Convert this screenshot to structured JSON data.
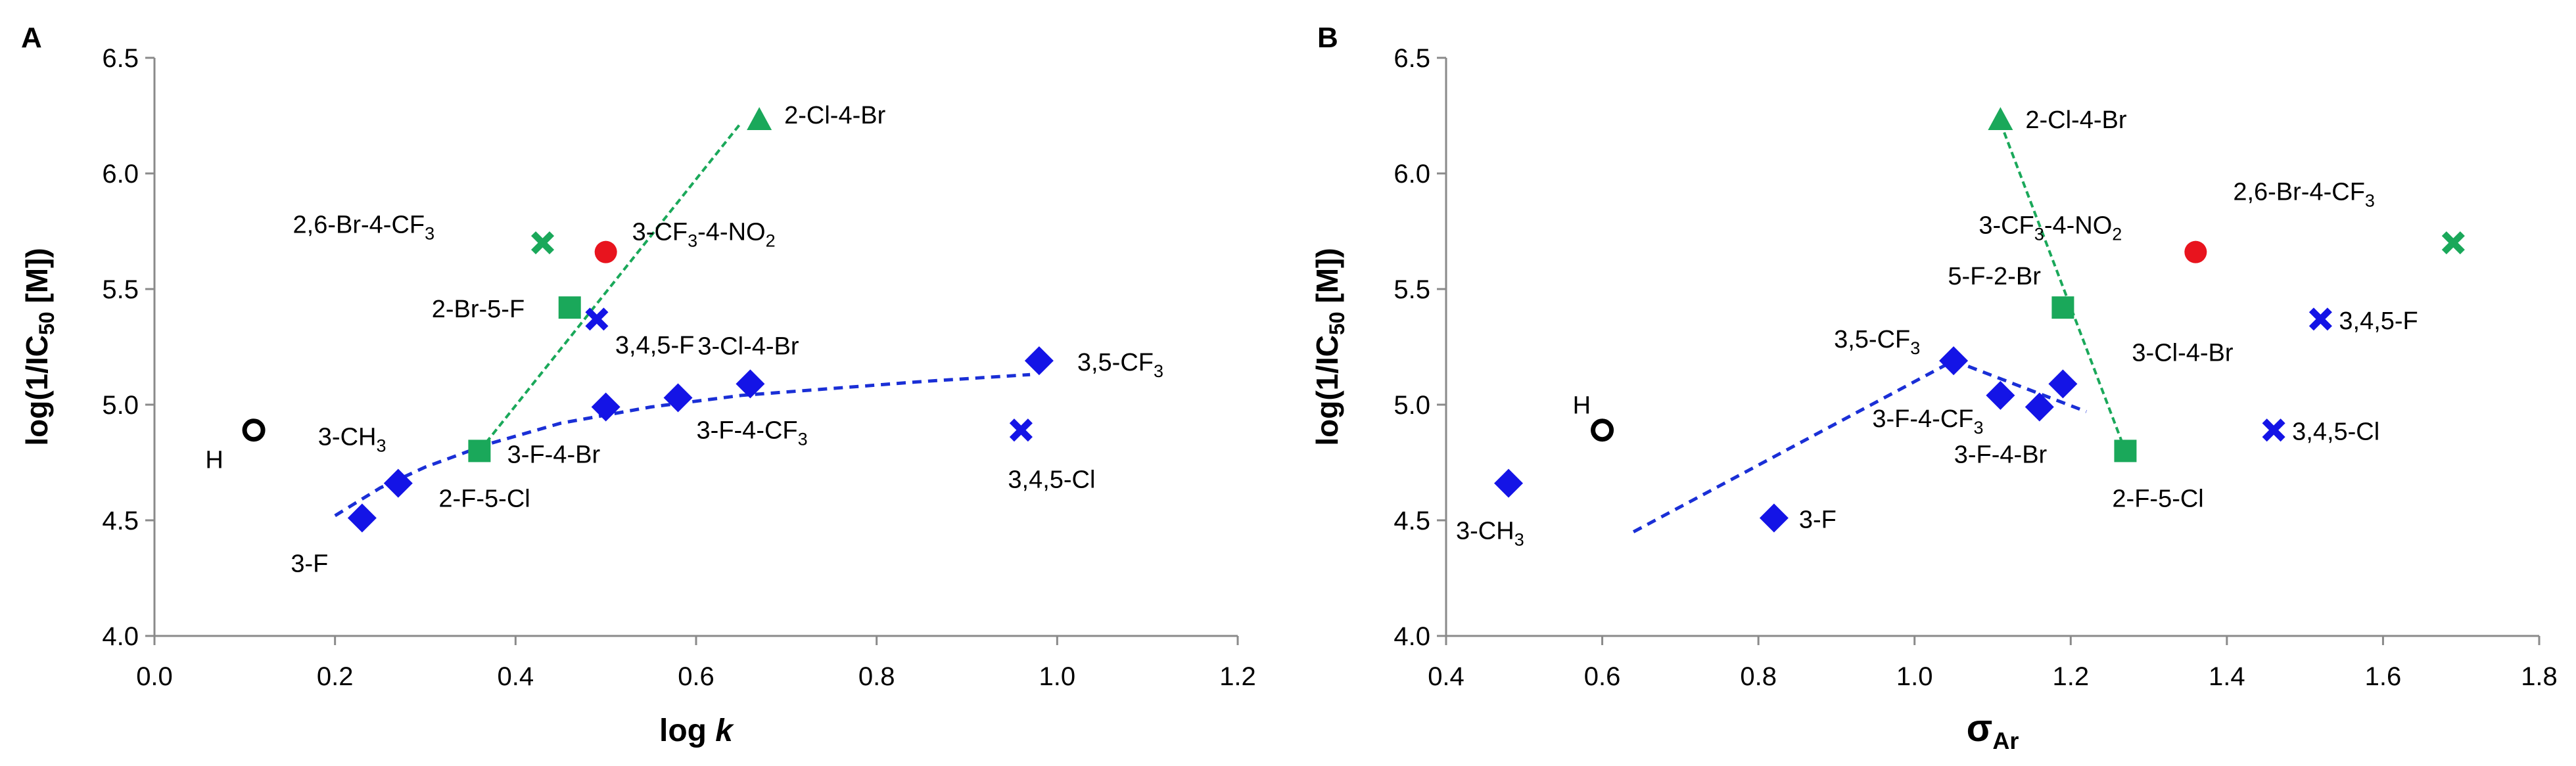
{
  "chart_data": [
    {
      "panel_label": "A",
      "type": "scatter",
      "title": "",
      "xlabel": "log k",
      "ylabel": "log(1/IC50 [M])",
      "xlim": [
        0.0,
        1.2
      ],
      "ylim": [
        4.0,
        6.5
      ],
      "x_ticks": [
        "0.0",
        "0.2",
        "0.4",
        "0.6",
        "0.8",
        "1.0",
        "1.2"
      ],
      "y_ticks": [
        "4.0",
        "4.5",
        "5.0",
        "5.5",
        "6.0",
        "6.5"
      ],
      "grid": false,
      "legend": "none",
      "points": [
        {
          "label": "H",
          "x": 0.11,
          "y": 4.89,
          "marker": "open-circle",
          "color": "#000000"
        },
        {
          "label": "3-F",
          "x": 0.23,
          "y": 4.51,
          "marker": "diamond",
          "color": "#1414e6"
        },
        {
          "label": "3-CH3",
          "x": 0.27,
          "y": 4.66,
          "marker": "diamond",
          "color": "#1414e6"
        },
        {
          "label": "3-F-4-Br",
          "x": 0.5,
          "y": 4.99,
          "marker": "diamond",
          "color": "#1414e6"
        },
        {
          "label": "3-F-4-CF3",
          "x": 0.58,
          "y": 5.03,
          "marker": "diamond",
          "color": "#1414e6"
        },
        {
          "label": "3-Cl-4-Br",
          "x": 0.66,
          "y": 5.09,
          "marker": "diamond",
          "color": "#1414e6"
        },
        {
          "label": "3,5-CF3",
          "x": 0.98,
          "y": 5.19,
          "marker": "diamond",
          "color": "#1414e6"
        },
        {
          "label": "2-F-5-Cl",
          "x": 0.36,
          "y": 4.8,
          "marker": "square",
          "color": "#1aa85a"
        },
        {
          "label": "2-Br-5-F",
          "x": 0.46,
          "y": 5.42,
          "marker": "square",
          "color": "#1aa85a"
        },
        {
          "label": "2-Cl-4-Br",
          "x": 0.67,
          "y": 6.23,
          "marker": "triangle",
          "color": "#1aa85a"
        },
        {
          "label": "2,6-Br-4-CF3",
          "x": 0.43,
          "y": 5.7,
          "marker": "x",
          "color": "#1aa85a"
        },
        {
          "label": "3-CF3-4-NO2",
          "x": 0.5,
          "y": 5.66,
          "marker": "circle",
          "color": "#e8141e"
        },
        {
          "label": "3,4,5-F",
          "x": 0.49,
          "y": 5.37,
          "marker": "x",
          "color": "#1414e6"
        },
        {
          "label": "3,4,5-Cl",
          "x": 0.96,
          "y": 4.89,
          "marker": "x",
          "color": "#1414e6"
        }
      ],
      "trendlines": [
        {
          "name": "blue-fit",
          "color": "#1a2fd6",
          "x": [
            0.2,
            0.25,
            0.3,
            0.37,
            0.45,
            0.55,
            0.65,
            0.75,
            0.85,
            0.97
          ],
          "y": [
            4.52,
            4.64,
            4.73,
            4.83,
            4.92,
            4.99,
            5.04,
            5.07,
            5.1,
            5.13
          ]
        },
        {
          "name": "green-fit",
          "color": "#1aa85a",
          "x": [
            0.36,
            0.65
          ],
          "y": [
            4.8,
            6.22
          ]
        }
      ]
    },
    {
      "panel_label": "B",
      "type": "scatter",
      "title": "",
      "xlabel": "σAr",
      "ylabel": "log(1/IC50 [M])",
      "xlim": [
        0.4,
        1.8
      ],
      "ylim": [
        4.0,
        6.5
      ],
      "x_ticks": [
        "0.4",
        "0.6",
        "0.8",
        "1.0",
        "1.2",
        "1.4",
        "1.6",
        "1.8"
      ],
      "y_ticks": [
        "4.0",
        "4.5",
        "5.0",
        "5.5",
        "6.0",
        "6.5"
      ],
      "grid": false,
      "legend": "none",
      "points": [
        {
          "label": "H",
          "x": 0.6,
          "y": 4.89,
          "marker": "open-circle",
          "color": "#000000"
        },
        {
          "label": "3-CH3",
          "x": 0.48,
          "y": 4.66,
          "marker": "diamond",
          "color": "#1414e6"
        },
        {
          "label": "3-F",
          "x": 0.82,
          "y": 4.51,
          "marker": "diamond",
          "color": "#1414e6"
        },
        {
          "label": "3,5-CF3",
          "x": 1.05,
          "y": 5.19,
          "marker": "diamond",
          "color": "#1414e6"
        },
        {
          "label": "3-F-4-CF3",
          "x": 1.11,
          "y": 5.04,
          "marker": "diamond",
          "color": "#1414e6"
        },
        {
          "label": "3-F-4-Br",
          "x": 1.16,
          "y": 4.99,
          "marker": "diamond",
          "color": "#1414e6"
        },
        {
          "label": "3-Cl-4-Br",
          "x": 1.19,
          "y": 5.09,
          "marker": "diamond",
          "color": "#1414e6"
        },
        {
          "label": "2-Cl-4-Br",
          "x": 1.11,
          "y": 6.23,
          "marker": "triangle",
          "color": "#1aa85a"
        },
        {
          "label": "5-F-2-Br",
          "x": 1.19,
          "y": 5.42,
          "marker": "square",
          "color": "#1aa85a"
        },
        {
          "label": "2-F-5-Cl",
          "x": 1.27,
          "y": 4.8,
          "marker": "square",
          "color": "#1aa85a"
        },
        {
          "label": "3-CF3-4-NO2",
          "x": 1.36,
          "y": 5.66,
          "marker": "circle",
          "color": "#e8141e"
        },
        {
          "label": "2,6-Br-4-CF3",
          "x": 1.69,
          "y": 5.7,
          "marker": "x",
          "color": "#1aa85a"
        },
        {
          "label": "3,4,5-F",
          "x": 1.52,
          "y": 5.37,
          "marker": "x",
          "color": "#1414e6"
        },
        {
          "label": "3,4,5-Cl",
          "x": 1.46,
          "y": 4.89,
          "marker": "x",
          "color": "#1414e6"
        }
      ],
      "trendlines": [
        {
          "name": "blue-fit",
          "color": "#1a2fd6",
          "x": [
            0.64,
            1.05,
            1.22
          ],
          "y": [
            4.45,
            5.19,
            4.97
          ]
        },
        {
          "name": "green-fit",
          "color": "#1aa85a",
          "x": [
            1.11,
            1.27
          ],
          "y": [
            6.22,
            4.8
          ]
        }
      ]
    }
  ]
}
